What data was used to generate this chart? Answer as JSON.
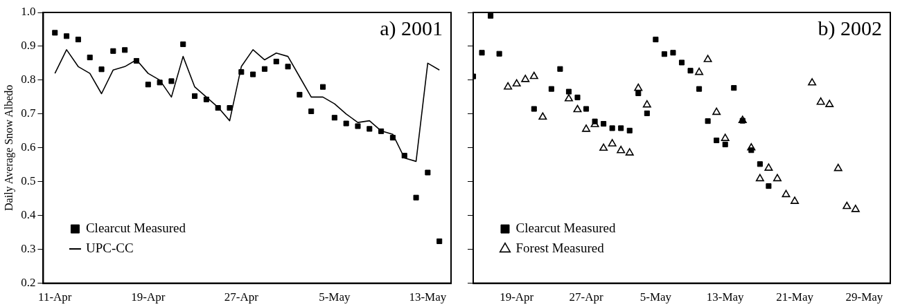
{
  "chart_data": [
    {
      "type": "scatter",
      "title": "a) 2001",
      "ylabel": "Daily Average Snow Albedo",
      "legend": "bottom left",
      "xlim": [
        "--04-10",
        "--05-15"
      ],
      "xticks": [
        {
          "value": "--04-11",
          "label": "11-Apr"
        },
        {
          "value": "--04-19",
          "label": "19-Apr"
        },
        {
          "value": "--04-27",
          "label": "27-Apr"
        },
        {
          "value": "--05-05",
          "label": "5-May"
        },
        {
          "value": "--05-13",
          "label": "13-May"
        }
      ],
      "ylim": [
        0.2,
        1.0
      ],
      "yticks": [
        {
          "value": 0.2,
          "label": "0.2"
        },
        {
          "value": 0.3,
          "label": "0.3"
        },
        {
          "value": 0.4,
          "label": "0.4"
        },
        {
          "value": 0.5,
          "label": "0.5"
        },
        {
          "value": 0.6,
          "label": "0.6"
        },
        {
          "value": 0.7,
          "label": "0.7"
        },
        {
          "value": 0.8,
          "label": "0.8"
        },
        {
          "value": 0.9,
          "label": "0.9"
        },
        {
          "value": 1.0,
          "label": "1.0"
        }
      ],
      "x": [
        "--04-11",
        "--04-12",
        "--04-13",
        "--04-14",
        "--04-15",
        "--04-16",
        "--04-17",
        "--04-18",
        "--04-19",
        "--04-20",
        "--04-21",
        "--04-22",
        "--04-23",
        "--04-24",
        "--04-25",
        "--04-26",
        "--04-27",
        "--04-28",
        "--04-29",
        "--04-30",
        "--05-01",
        "--05-02",
        "--05-03",
        "--05-04",
        "--05-05",
        "--05-06",
        "--05-07",
        "--05-08",
        "--05-09",
        "--05-10",
        "--05-11",
        "--05-12",
        "--05-13",
        "--05-14"
      ],
      "series": [
        {
          "name": "Clearcut Measured",
          "marker": "square",
          "color": "#000000",
          "values": [
            0.94,
            0.93,
            0.92,
            0.867,
            0.832,
            0.886,
            0.889,
            0.857,
            0.787,
            0.793,
            0.797,
            0.906,
            0.753,
            0.743,
            0.718,
            0.718,
            0.824,
            0.817,
            0.833,
            0.855,
            0.84,
            0.757,
            0.708,
            0.78,
            0.689,
            0.672,
            0.664,
            0.656,
            0.649,
            0.63,
            0.577,
            0.453,
            0.527,
            0.324
          ]
        },
        {
          "name": "UPC-CC",
          "type": "line",
          "marker": "none",
          "line_style": "solid",
          "color": "#000000",
          "values": [
            0.82,
            0.89,
            0.84,
            0.82,
            0.76,
            0.83,
            0.84,
            0.86,
            0.82,
            0.8,
            0.75,
            0.87,
            0.78,
            0.75,
            0.72,
            0.68,
            0.84,
            0.89,
            0.86,
            0.88,
            0.87,
            0.81,
            0.75,
            0.75,
            0.73,
            0.7,
            0.675,
            0.68,
            0.65,
            0.64,
            0.57,
            0.56,
            0.85,
            0.83
          ]
        }
      ]
    },
    {
      "type": "scatter",
      "title": "b) 2002",
      "legend": "bottom left",
      "tick_labels": "x",
      "xlim": [
        "--04-14",
        "--06-01"
      ],
      "xticks": [
        {
          "value": "--04-19",
          "label": "19-Apr"
        },
        {
          "value": "--04-27",
          "label": "27-Apr"
        },
        {
          "value": "--05-05",
          "label": "5-May"
        },
        {
          "value": "--05-13",
          "label": "13-May"
        },
        {
          "value": "--05-21",
          "label": "21-May"
        },
        {
          "value": "--05-29",
          "label": "29-May"
        }
      ],
      "ylim": [
        0.2,
        1.0
      ],
      "yticks": [
        0.2,
        0.3,
        0.4,
        0.5,
        0.6,
        0.7,
        0.8,
        0.9,
        1.0
      ],
      "series": [
        {
          "name": "Clearcut Measured",
          "marker": "square",
          "color": "#000000",
          "x": [
            "--04-14",
            "--04-15",
            "--04-16",
            "--04-17",
            "--04-21",
            "--04-23",
            "--04-24",
            "--04-25",
            "--04-26",
            "--04-27",
            "--04-28",
            "--04-29",
            "--04-30",
            "--05-01",
            "--05-02",
            "--05-03",
            "--05-04",
            "--05-05",
            "--05-06",
            "--05-07",
            "--05-08",
            "--05-09",
            "--05-10",
            "--05-11",
            "--05-12",
            "--05-13",
            "--05-14",
            "--05-15",
            "--05-16",
            "--05-17",
            "--05-18"
          ],
          "values": [
            0.811,
            0.881,
            0.99,
            0.878,
            0.715,
            0.774,
            0.833,
            0.766,
            0.749,
            0.715,
            0.678,
            0.671,
            0.658,
            0.658,
            0.651,
            0.761,
            0.702,
            0.92,
            0.877,
            0.881,
            0.852,
            0.828,
            0.774,
            0.679,
            0.622,
            0.61,
            0.777,
            0.68,
            0.593,
            0.552,
            0.487
          ]
        },
        {
          "name": "Forest Measured",
          "marker": "triangle",
          "color": "#000000",
          "x": [
            "--04-18",
            "--04-19",
            "--04-20",
            "--04-21",
            "--04-22",
            "--04-25",
            "--04-26",
            "--04-27",
            "--04-28",
            "--04-29",
            "--04-30",
            "--05-01",
            "--05-02",
            "--05-03",
            "--05-04",
            "--05-10",
            "--05-11",
            "--05-12",
            "--05-13",
            "--05-15",
            "--05-16",
            "--05-17",
            "--05-18",
            "--05-19",
            "--05-20",
            "--05-21",
            "--05-23",
            "--05-24",
            "--05-25",
            "--05-26",
            "--05-27",
            "--05-28"
          ],
          "values": [
            0.78,
            0.789,
            0.802,
            0.811,
            0.691,
            0.745,
            0.713,
            0.655,
            0.669,
            0.599,
            0.612,
            0.592,
            0.585,
            0.776,
            0.727,
            0.823,
            0.861,
            0.705,
            0.628,
            0.681,
            0.6,
            0.509,
            0.54,
            0.509,
            0.462,
            0.442,
            0.792,
            0.735,
            0.728,
            0.539,
            0.427,
            0.418
          ]
        }
      ]
    }
  ]
}
